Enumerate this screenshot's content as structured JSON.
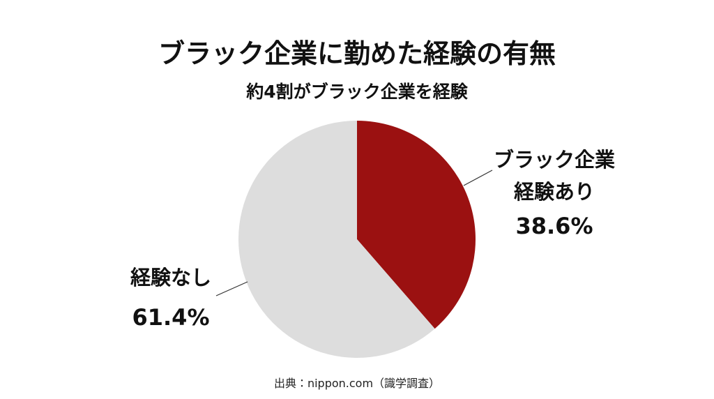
{
  "chart_data": {
    "type": "pie",
    "title": "ブラック企業に勤めた経験の有無",
    "subtitle": "約4割がブラック企業を経験",
    "categories": [
      "ブラック企業経験あり",
      "経験なし"
    ],
    "values": [
      38.6,
      61.4
    ],
    "value_labels": [
      "38.6%",
      "61.4%"
    ],
    "colors": [
      "#9b1111",
      "#dddddd"
    ],
    "source": "出典：nippon.com（識学調査）"
  }
}
